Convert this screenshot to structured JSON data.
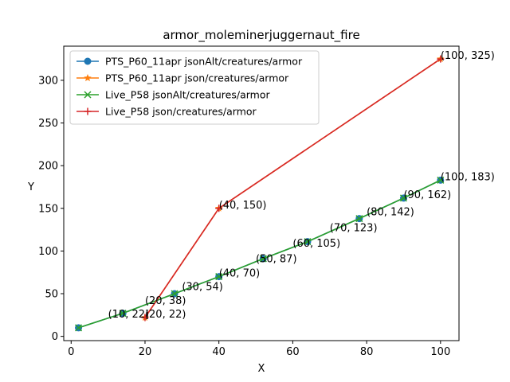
{
  "chart_data": {
    "type": "line",
    "title": "armor_moleminerjuggernaut_fire",
    "xlabel": "X",
    "ylabel": "Y",
    "xlim": [
      -2,
      105
    ],
    "ylim": [
      -5,
      340
    ],
    "xticks": [
      0,
      20,
      40,
      60,
      80,
      100
    ],
    "yticks": [
      0,
      50,
      100,
      150,
      200,
      250,
      300
    ],
    "grid": false,
    "legend_position": "top-left",
    "series": [
      {
        "name": "PTS_P60_11apr jsonAlt/creatures/armor",
        "color": "#1f77b4",
        "marker": "circle",
        "x": [
          2,
          14,
          28,
          40,
          52,
          64,
          78,
          90,
          100
        ],
        "y": [
          10,
          27,
          50,
          70,
          91,
          111,
          138,
          162,
          183
        ]
      },
      {
        "name": "PTS_P60_11apr json/creatures/armor",
        "color": "#ff7f0e",
        "marker": "star",
        "x": [
          20,
          40,
          100
        ],
        "y": [
          22,
          150,
          325
        ]
      },
      {
        "name": "Live_P58 jsonAlt/creatures/armor",
        "color": "#2ca02c",
        "marker": "x",
        "x": [
          2,
          14,
          28,
          40,
          52,
          64,
          78,
          90,
          100
        ],
        "y": [
          10,
          27,
          50,
          70,
          91,
          111,
          138,
          162,
          183
        ]
      },
      {
        "name": "Live_P58 json/creatures/armor",
        "color": "#d62728",
        "marker": "plus",
        "x": [
          20,
          40,
          100
        ],
        "y": [
          22,
          150,
          325
        ]
      }
    ],
    "annotations": [
      {
        "text": "(10, 22)",
        "x": 10,
        "y": 22
      },
      {
        "text": "(20, 22)",
        "x": 20,
        "y": 22
      },
      {
        "text": "(20, 38)",
        "x": 20,
        "y": 38
      },
      {
        "text": "(30, 54)",
        "x": 30,
        "y": 54
      },
      {
        "text": "(40, 70)",
        "x": 40,
        "y": 70
      },
      {
        "text": "(40, 150)",
        "x": 40,
        "y": 150
      },
      {
        "text": "(50, 87)",
        "x": 50,
        "y": 87
      },
      {
        "text": "(60, 105)",
        "x": 60,
        "y": 105
      },
      {
        "text": "(70, 123)",
        "x": 70,
        "y": 123
      },
      {
        "text": "(80, 142)",
        "x": 80,
        "y": 142
      },
      {
        "text": "(90, 162)",
        "x": 90,
        "y": 162
      },
      {
        "text": "(100, 183)",
        "x": 100,
        "y": 183
      },
      {
        "text": "(100, 325)",
        "x": 100,
        "y": 325
      }
    ]
  }
}
